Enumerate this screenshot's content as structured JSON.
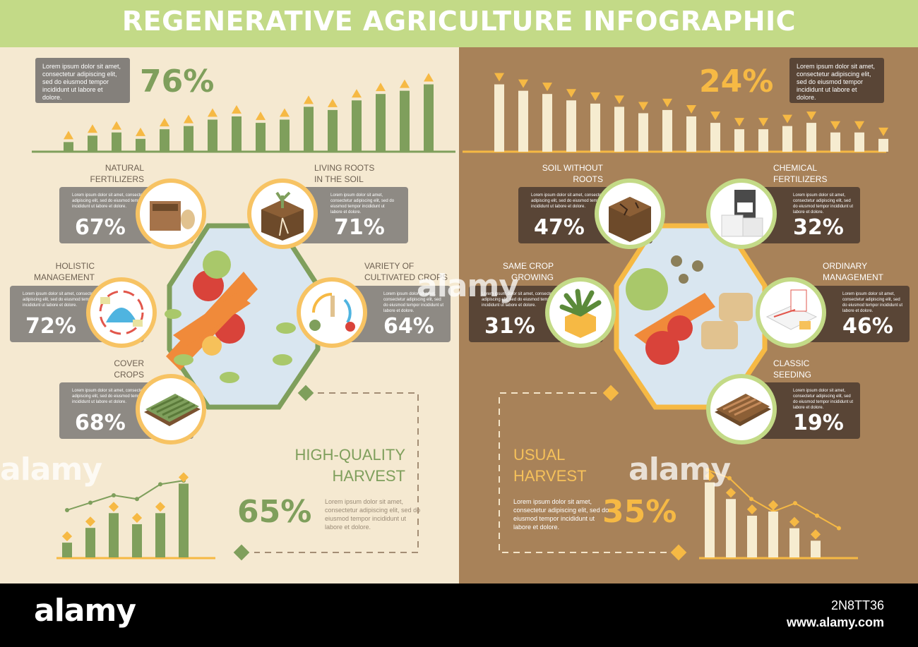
{
  "title": "REGENERATIVE AGRICULTURE INFOGRAPHIC",
  "lorem": "Lorem ipsum dolor sit amet, consectetur adipiscing elit, sed do eiusmod tempor incididunt ut labore et dolore.",
  "left": {
    "total_pct": "76%",
    "cards": [
      {
        "label": "NATURAL\nFERTILIZERS",
        "pct": "67%",
        "icon": "compost-box-icon"
      },
      {
        "label": "LIVING ROOTS\nIN THE SOIL",
        "pct": "71%",
        "icon": "soil-roots-icon"
      },
      {
        "label": "HOLISTIC\nMANAGEMENT",
        "pct": "72%",
        "icon": "dome-farm-icon"
      },
      {
        "label": "VARIETY OF\nCULTIVATED CROPS",
        "pct": "64%",
        "icon": "crop-cycle-icon"
      },
      {
        "label": "COVER\nCROPS",
        "pct": "68%",
        "icon": "cover-crop-field-icon"
      }
    ],
    "harvest_label": "HIGH-QUALITY\nHARVEST",
    "harvest_pct": "65%"
  },
  "right": {
    "total_pct": "24%",
    "cards": [
      {
        "label": "SOIL WITHOUT\nROOTS",
        "pct": "47%",
        "icon": "cracked-soil-icon"
      },
      {
        "label": "CHEMICAL\nFERTILIZERS",
        "pct": "32%",
        "icon": "fertilizer-bags-icon"
      },
      {
        "label": "SAME CROP\nGROWING",
        "pct": "31%",
        "icon": "single-plant-icon"
      },
      {
        "label": "ORDINARY\nMANAGEMENT",
        "pct": "46%",
        "icon": "paperwork-icon"
      },
      {
        "label": "CLASSIC\nSEEDING",
        "pct": "19%",
        "icon": "seeding-tray-icon"
      }
    ],
    "harvest_label": "USUAL\nHARVEST",
    "harvest_pct": "35%"
  },
  "colors": {
    "title_bar": "#c3da87",
    "left_bg": "#f5e9d1",
    "right_bg": "#a88259",
    "green_bar": "#7f9f5c",
    "gold": "#f6b944",
    "cream_bar": "#f6ecd0"
  },
  "watermark": "alamy",
  "footer": {
    "logo": "alamy",
    "image_id": "2N8TT36",
    "url": "www.alamy.com"
  },
  "chart_data": [
    {
      "type": "bar",
      "series": [
        {
          "values": [
            3,
            5,
            6,
            4,
            7,
            8,
            10,
            11,
            9,
            10,
            14,
            13,
            16,
            18,
            19,
            21
          ]
        }
      ],
      "ylim": [
        0,
        22
      ]
    },
    {
      "type": "bar",
      "series": [
        {
          "values": [
            21,
            19,
            18,
            16,
            15,
            14,
            12,
            13,
            11,
            9,
            7,
            7,
            8,
            9,
            6,
            6,
            4
          ]
        }
      ],
      "ylim": [
        0,
        22
      ]
    },
    {
      "type": "bar",
      "series": [
        {
          "values": [
            4,
            8,
            12,
            9,
            12,
            20
          ]
        }
      ],
      "line": [
        9,
        11,
        13,
        12,
        16,
        17
      ],
      "ylim": [
        0,
        22
      ]
    },
    {
      "type": "bar",
      "series": [
        {
          "values": [
            18,
            14,
            10,
            11,
            7,
            4
          ]
        }
      ],
      "line": [
        21,
        19,
        14,
        11,
        13,
        10,
        7
      ],
      "ylim": [
        0,
        22
      ]
    }
  ]
}
